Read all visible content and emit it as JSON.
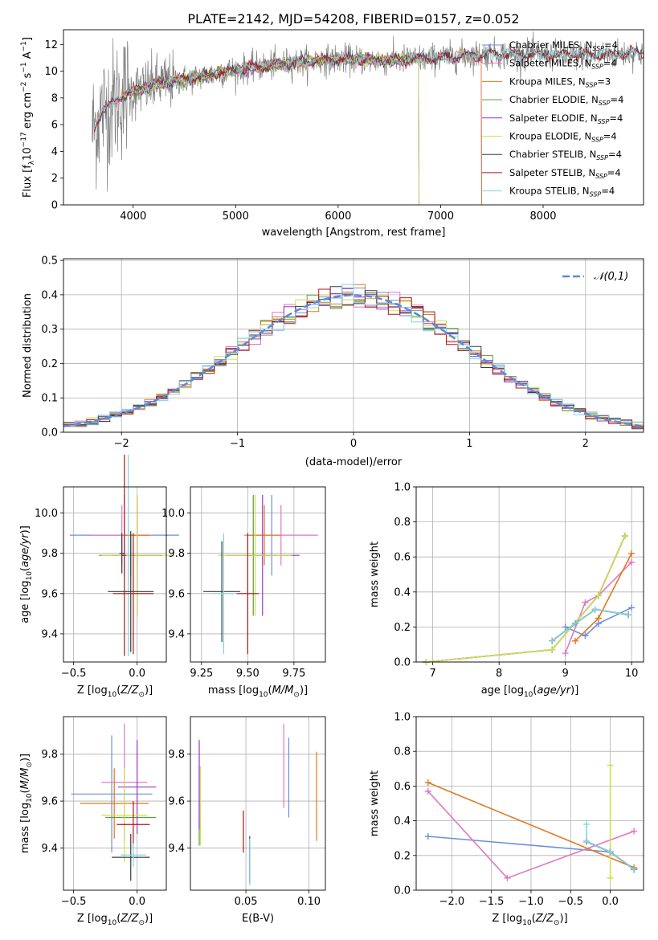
{
  "figure": {
    "title": "PLATE=2142, MJD=54208, FIBERID=0157, z=0.052"
  },
  "colors": {
    "Chabrier MILES": "#6a8fdd",
    "Salpeter MILES": "#e377c2",
    "Kroupa MILES": "#e07a1f",
    "Chabrier ELODIE": "#5b9a3a",
    "Salpeter ELODIE": "#9b34c4",
    "Kroupa ELODIE": "#cfe04f",
    "Chabrier STELIB": "#3a3a3a",
    "Salpeter STELIB": "#b01515",
    "Kroupa STELIB": "#7fd6e4",
    "data": "#808080",
    "gaussian": "#5b8bd9"
  },
  "chart_data": [
    {
      "panel": "spectrum",
      "type": "line",
      "xlabel": "wavelength [Angstrom, rest frame]",
      "ylabel": "Flux [f",
      "ylabel_parts": [
        "Flux [f",
        "λ",
        "10",
        "−17",
        " erg cm",
        "−2",
        " s",
        "−1",
        " A",
        "−1",
        "]"
      ],
      "xlim": [
        3320,
        8980
      ],
      "ylim": [
        0,
        13.1
      ],
      "xticks": [
        4000,
        5000,
        6000,
        7000,
        8000
      ],
      "yticks": [
        0,
        2,
        4,
        6,
        8,
        10,
        12
      ],
      "grid": false,
      "legend_position": "top-right",
      "legend": [
        {
          "name": "Chabrier MILES",
          "n": "4"
        },
        {
          "name": "Salpeter MILES",
          "n": "4"
        },
        {
          "name": "Kroupa MILES",
          "n": "3"
        },
        {
          "name": "Chabrier ELODIE",
          "n": "4"
        },
        {
          "name": "Salpeter ELODIE",
          "n": "4"
        },
        {
          "name": "Kroupa ELODIE",
          "n": "4"
        },
        {
          "name": "Chabrier STELIB",
          "n": "4"
        },
        {
          "name": "Salpeter STELIB",
          "n": "4"
        },
        {
          "name": "Kroupa STELIB",
          "n": "4"
        }
      ],
      "legend_suffix": "N",
      "legend_sub": "SSP",
      "data_range": [
        3600,
        8980
      ],
      "continuum": [
        [
          3600,
          5.5
        ],
        [
          3700,
          7.0
        ],
        [
          3900,
          8.2
        ],
        [
          4200,
          9.0
        ],
        [
          4600,
          9.5
        ],
        [
          5000,
          10.1
        ],
        [
          5500,
          10.6
        ],
        [
          6000,
          10.9
        ],
        [
          6500,
          10.8
        ],
        [
          7000,
          11.0
        ],
        [
          7500,
          11.3
        ],
        [
          8000,
          11.2
        ],
        [
          8500,
          11.2
        ],
        [
          8980,
          11.4
        ]
      ],
      "model_ends": {
        "Chabrier MILES": 7400,
        "Salpeter MILES": 7400,
        "Kroupa MILES": 7400,
        "Chabrier ELODIE": 6790,
        "Salpeter ELODIE": 6790,
        "Kroupa ELODIE": 6790,
        "Chabrier STELIB": 8980,
        "Salpeter STELIB": 8980,
        "Kroupa STELIB": 8980
      },
      "model_starts": {
        "Chabrier MILES": 3620,
        "Salpeter MILES": 3620,
        "Kroupa MILES": 3620,
        "Chabrier ELODIE": 3920,
        "Salpeter ELODIE": 3920,
        "Kroupa ELODIE": 3920,
        "Chabrier STELIB": 3620,
        "Salpeter STELIB": 3620,
        "Kroupa STELIB": 3620
      }
    },
    {
      "panel": "residuals",
      "type": "histogram",
      "xlabel": "(data-model)/error",
      "ylabel": "Normed distribution",
      "xlim": [
        -2.5,
        2.5
      ],
      "ylim": [
        0,
        0.505
      ],
      "xticks": [
        -2,
        -1,
        0,
        1,
        2
      ],
      "yticks": [
        0.0,
        0.1,
        0.2,
        0.3,
        0.4,
        0.5
      ],
      "grid": true,
      "legend_position": "top-right",
      "legend_label": "𝒩(0,1)",
      "bin_width": 0.1
    },
    {
      "panel": "Z-age",
      "type": "errorbar",
      "xlabel": "Z [log10(Z/Z☉)]",
      "ylabel": "age  [log10(age/yr)]",
      "xlim": [
        -0.58,
        0.23
      ],
      "ylim": [
        9.26,
        10.13
      ],
      "xticks": [
        -0.5,
        0.0
      ],
      "yticks": [
        9.4,
        9.6,
        9.8,
        10.0
      ],
      "grid": true,
      "series": [
        {
          "name": "Chabrier MILES",
          "x": -0.1,
          "xerr": 0.43,
          "y": 9.89,
          "yerr": 0.2
        },
        {
          "name": "Salpeter MILES",
          "x": -0.12,
          "xerr": 0.24,
          "y": 9.89,
          "yerr": 0.15
        },
        {
          "name": "Kroupa MILES",
          "x": 0.0,
          "xerr": 0.1,
          "y": 9.89,
          "yerr": 0.15
        },
        {
          "name": "Chabrier ELODIE",
          "x": -0.05,
          "xerr": 0.25,
          "y": 9.79,
          "yerr": 0.1
        },
        {
          "name": "Salpeter ELODIE",
          "x": 0.0,
          "xerr": 0.2,
          "y": 9.79,
          "yerr": 0.3
        },
        {
          "name": "Kroupa ELODIE",
          "x": 0.0,
          "xerr": 0.28,
          "y": 9.79,
          "yerr": 0.3
        },
        {
          "name": "Chabrier STELIB",
          "x": -0.12,
          "xerr": 0.02,
          "y": 9.8,
          "yerr": 0.1
        },
        {
          "name": "Salpeter STELIB",
          "x": -0.1,
          "xerr": 0.02,
          "y": 9.79,
          "yerr": 0.5
        },
        {
          "name": "Kroupa STELIB",
          "x": -0.07,
          "xerr": 0.02,
          "y": 9.79,
          "yerr": 0.5
        },
        {
          "name": "Chabrier STELIB",
          "x": -0.05,
          "xerr": 0.18,
          "y": 9.61,
          "yerr": 0.3
        },
        {
          "name": "Salpeter STELIB",
          "x": -0.03,
          "xerr": 0.16,
          "y": 9.6,
          "yerr": 0.3
        }
      ]
    },
    {
      "panel": "mass-age",
      "type": "errorbar",
      "xlabel": "mass [log10(M/M☉)]",
      "xlim": [
        9.19,
        9.92
      ],
      "ylim": [
        9.26,
        10.13
      ],
      "xticks": [
        9.25,
        9.5,
        9.75
      ],
      "yticks": [
        9.4,
        9.6,
        9.8,
        10.0
      ],
      "grid": true,
      "series": [
        {
          "name": "Chabrier MILES",
          "x": 9.63,
          "xerr": 0.0,
          "y": 9.89,
          "yerr": 0.2
        },
        {
          "name": "Salpeter MILES",
          "x": 9.68,
          "xerr": 0.2,
          "y": 9.89,
          "yerr": 0.15
        },
        {
          "name": "Kroupa MILES",
          "x": 9.59,
          "xerr": 0.09,
          "y": 9.89,
          "yerr": 0.15
        },
        {
          "name": "Chabrier ELODIE",
          "x": 9.53,
          "xerr": 0.03,
          "y": 9.79,
          "yerr": 0.3
        },
        {
          "name": "Salpeter ELODIE",
          "x": 9.58,
          "xerr": 0.2,
          "y": 9.79,
          "yerr": 0.3
        },
        {
          "name": "Kroupa ELODIE",
          "x": 9.54,
          "xerr": 0.2,
          "y": 9.79,
          "yerr": 0.3
        },
        {
          "name": "Chabrier STELIB",
          "x": 9.36,
          "xerr": 0.1,
          "y": 9.61,
          "yerr": 0.25
        },
        {
          "name": "Salpeter STELIB",
          "x": 9.5,
          "xerr": 0.06,
          "y": 9.6,
          "yerr": 0.3
        },
        {
          "name": "Kroupa STELIB",
          "x": 9.37,
          "xerr": 0.06,
          "y": 9.6,
          "yerr": 0.3
        }
      ]
    },
    {
      "panel": "age-weight",
      "type": "line",
      "xlabel": "age  [log10(age/yr)]",
      "ylabel": "mass weight",
      "xlim": [
        6.75,
        10.18
      ],
      "ylim": [
        0.0,
        1.0
      ],
      "xticks": [
        7,
        8,
        9,
        10
      ],
      "yticks": [
        0.0,
        0.2,
        0.4,
        0.6,
        0.8,
        1.0
      ],
      "grid": true,
      "series": [
        {
          "name": "Chabrier MILES",
          "x": [
            9.0,
            9.3,
            9.5,
            10.0
          ],
          "y": [
            0.2,
            0.15,
            0.22,
            0.31
          ]
        },
        {
          "name": "Salpeter MILES",
          "x": [
            9.0,
            9.3,
            9.5,
            10.0
          ],
          "y": [
            0.05,
            0.34,
            0.38,
            0.57
          ]
        },
        {
          "name": "Kroupa MILES",
          "x": [
            9.15,
            9.5,
            10.0
          ],
          "y": [
            0.12,
            0.25,
            0.62
          ]
        },
        {
          "name": "Chabrier ELODIE",
          "x": [
            6.9,
            8.8,
            9.5,
            9.9
          ],
          "y": [
            0.0,
            0.07,
            0.38,
            0.72
          ]
        },
        {
          "name": "Salpeter ELODIE",
          "x": [
            6.9,
            8.8,
            9.5,
            9.9
          ],
          "y": [
            0.0,
            0.07,
            0.38,
            0.72
          ]
        },
        {
          "name": "Kroupa ELODIE",
          "x": [
            6.9,
            8.8,
            9.5,
            9.9
          ],
          "y": [
            0.0,
            0.07,
            0.38,
            0.72
          ]
        },
        {
          "name": "Chabrier STELIB",
          "x": [
            8.8,
            9.15,
            9.45,
            9.95
          ],
          "y": [
            0.12,
            0.22,
            0.3,
            0.27
          ]
        },
        {
          "name": "Salpeter STELIB",
          "x": [
            8.8,
            9.15,
            9.45,
            9.95
          ],
          "y": [
            0.12,
            0.22,
            0.3,
            0.27
          ]
        },
        {
          "name": "Kroupa STELIB",
          "x": [
            8.8,
            9.15,
            9.45,
            9.95
          ],
          "y": [
            0.12,
            0.22,
            0.3,
            0.27
          ]
        }
      ]
    },
    {
      "panel": "Z-mass",
      "type": "errorbar",
      "xlabel": "Z [log10(Z/Z☉)]",
      "ylabel": "mass [log10(M/M☉)]",
      "xlim": [
        -0.58,
        0.23
      ],
      "ylim": [
        9.22,
        9.96
      ],
      "xticks": [
        -0.5,
        0.0
      ],
      "yticks": [
        9.4,
        9.6,
        9.8
      ],
      "grid": true,
      "series": [
        {
          "name": "Chabrier MILES",
          "x": -0.2,
          "xerr": 0.32,
          "y": 9.63,
          "yerr": 0.25
        },
        {
          "name": "Salpeter MILES",
          "x": -0.1,
          "xerr": 0.18,
          "y": 9.68,
          "yerr": 0.25
        },
        {
          "name": "Kroupa MILES",
          "x": -0.18,
          "xerr": 0.27,
          "y": 9.59,
          "yerr": 0.15
        },
        {
          "name": "Chabrier ELODIE",
          "x": -0.05,
          "xerr": 0.2,
          "y": 9.53,
          "yerr": 0.0
        },
        {
          "name": "Salpeter ELODIE",
          "x": 0.0,
          "xerr": 0.15,
          "y": 9.66,
          "yerr": 0.2
        },
        {
          "name": "Kroupa ELODIE",
          "x": -0.1,
          "xerr": 0.18,
          "y": 9.54,
          "yerr": 0.2
        },
        {
          "name": "Chabrier STELIB",
          "x": -0.05,
          "xerr": 0.15,
          "y": 9.36,
          "yerr": 0.1
        },
        {
          "name": "Salpeter STELIB",
          "x": -0.03,
          "xerr": 0.13,
          "y": 9.5,
          "yerr": 0.1
        },
        {
          "name": "Kroupa STELIB",
          "x": -0.03,
          "xerr": 0.1,
          "y": 9.37,
          "yerr": 0.05
        }
      ]
    },
    {
      "panel": "EBV-mass",
      "type": "errorbar",
      "xlabel": "E(B-V)",
      "xlim": [
        0.006,
        0.113
      ],
      "ylim": [
        9.22,
        9.96
      ],
      "xticks": [
        0.05,
        0.1
      ],
      "yticks": [
        9.4,
        9.6,
        9.8
      ],
      "grid": true,
      "series": [
        {
          "name": "Chabrier MILES",
          "x": 0.084,
          "y": 9.7,
          "yerr": 0.17
        },
        {
          "name": "Salpeter MILES",
          "x": 0.08,
          "y": 9.75,
          "yerr": 0.18
        },
        {
          "name": "Kroupa MILES",
          "x": 0.106,
          "y": 9.62,
          "yerr": 0.19
        },
        {
          "name": "Chabrier ELODIE",
          "x": 0.013,
          "y": 9.58,
          "yerr": 0.17
        },
        {
          "name": "Salpeter ELODIE",
          "x": 0.013,
          "y": 9.67,
          "yerr": 0.19
        },
        {
          "name": "Kroupa ELODIE",
          "x": 0.014,
          "y": 9.58,
          "yerr": 0.17
        },
        {
          "name": "Chabrier STELIB",
          "x": 0.053,
          "y": 9.35,
          "yerr": 0.1
        },
        {
          "name": "Salpeter STELIB",
          "x": 0.048,
          "y": 9.47,
          "yerr": 0.09
        },
        {
          "name": "Kroupa STELIB",
          "x": 0.053,
          "y": 9.34,
          "yerr": 0.1
        }
      ]
    },
    {
      "panel": "Z-weight",
      "type": "line",
      "xlabel": "Z [log10(Z/Z☉)]",
      "ylabel": "mass weight",
      "xlim": [
        -2.45,
        0.42
      ],
      "ylim": [
        0.0,
        1.0
      ],
      "xticks": [
        -2.0,
        -1.5,
        -1.0,
        -0.5,
        0.0
      ],
      "yticks": [
        0.0,
        0.2,
        0.4,
        0.6,
        0.8,
        1.0
      ],
      "grid": true,
      "series": [
        {
          "name": "Chabrier MILES",
          "x": [
            -2.3,
            0.0,
            0.3
          ],
          "y": [
            0.31,
            0.22,
            0.12
          ]
        },
        {
          "name": "Salpeter MILES",
          "x": [
            -2.3,
            -1.3,
            0.3
          ],
          "y": [
            0.57,
            0.07,
            0.34
          ]
        },
        {
          "name": "Kroupa MILES",
          "x": [
            -2.3,
            0.3
          ],
          "y": [
            0.62,
            0.13
          ]
        },
        {
          "name": "Chabrier ELODIE",
          "x": [
            -0.3,
            0.0,
            0.3
          ],
          "y": [
            0.28,
            0.22,
            0.12
          ]
        },
        {
          "name": "Salpeter ELODIE",
          "x": [
            -0.3,
            0.0,
            0.3
          ],
          "y": [
            0.28,
            0.22,
            0.12
          ]
        },
        {
          "name": "Kroupa ELODIE",
          "x": [
            0.0,
            0.0
          ],
          "y": [
            0.72,
            0.07
          ]
        },
        {
          "name": "Chabrier STELIB",
          "x": [
            -0.3,
            0.0,
            0.3
          ],
          "y": [
            0.28,
            0.22,
            0.12
          ]
        },
        {
          "name": "Salpeter STELIB",
          "x": [
            -0.3,
            0.0,
            0.3
          ],
          "y": [
            0.28,
            0.22,
            0.12
          ]
        },
        {
          "name": "Kroupa STELIB",
          "x": [
            -0.3,
            -0.3,
            0.0,
            0.3
          ],
          "y": [
            0.38,
            0.28,
            0.22,
            0.12
          ]
        }
      ]
    }
  ]
}
